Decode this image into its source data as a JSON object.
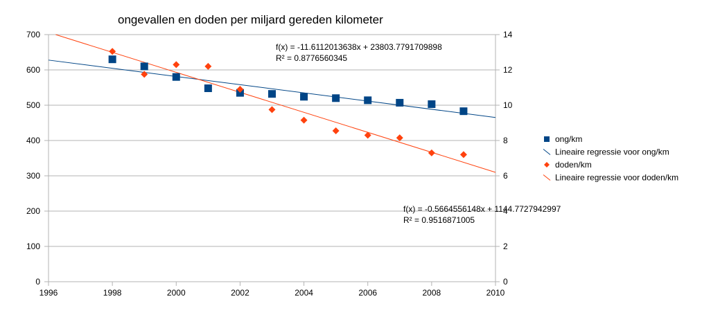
{
  "chart_data": {
    "type": "scatter",
    "title": "ongevallen en doden per miljard gereden kilometer",
    "xlim": [
      1996,
      2010
    ],
    "x_ticks": [
      1996,
      1998,
      2000,
      2002,
      2004,
      2006,
      2008,
      2010
    ],
    "ylim": [
      0,
      700
    ],
    "y_ticks": [
      0,
      100,
      200,
      300,
      400,
      500,
      600,
      700
    ],
    "y2lim": [
      0,
      14
    ],
    "y2_ticks": [
      0,
      2,
      4,
      6,
      8,
      10,
      12,
      14
    ],
    "grid": true,
    "legend_position": "right",
    "series": [
      {
        "name": "ong/km",
        "axis": "left",
        "marker": "square",
        "color": "#004586",
        "x": [
          1998,
          1999,
          2000,
          2001,
          2002,
          2003,
          2004,
          2005,
          2006,
          2007,
          2008,
          2009
        ],
        "y": [
          630,
          610,
          580,
          548,
          535,
          532,
          524,
          520,
          514,
          507,
          503,
          483
        ]
      },
      {
        "name": "doden/km",
        "axis": "right",
        "marker": "diamond",
        "color": "#ff420e",
        "x": [
          1998,
          1999,
          2000,
          2001,
          2002,
          2003,
          2004,
          2005,
          2006,
          2007,
          2008,
          2009
        ],
        "y": [
          13.05,
          11.75,
          12.3,
          12.2,
          10.9,
          9.75,
          9.15,
          8.55,
          8.3,
          8.15,
          7.3,
          7.2
        ]
      }
    ],
    "trendlines": [
      {
        "name": "Lineaire regressie voor ong/km",
        "axis": "left",
        "color": "#004586",
        "slope": -11.6112013638,
        "intercept": 23803.7791709898,
        "equation": "f(x) = -11.6112013638x + 23803.7791709898",
        "r2": "R² = 0.8776560345"
      },
      {
        "name": "Lineaire regressie voor doden/km",
        "axis": "right",
        "color": "#ff420e",
        "slope": -0.5664556148,
        "intercept": 1144.7727942997,
        "equation": "f(x) = -0.5664556148x + 1144.7727942997",
        "r2": "R² = 0.9516871005"
      }
    ]
  }
}
